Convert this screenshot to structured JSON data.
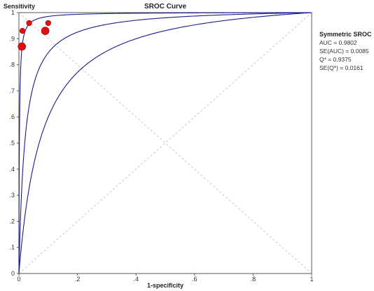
{
  "chart_data": {
    "type": "scatter",
    "title": "SROC Curve",
    "xlabel": "1-specificity",
    "ylabel": "Sensitivity",
    "xlim": [
      0,
      1
    ],
    "ylim": [
      0,
      1
    ],
    "x_ticks": [
      "0",
      ".2",
      ".4",
      ".6",
      ".8",
      "1"
    ],
    "y_ticks": [
      "0",
      ".1",
      ".2",
      ".3",
      ".4",
      ".5",
      ".6",
      ".7",
      ".8",
      ".9",
      "1"
    ],
    "grid": false,
    "legend": {
      "title": "Symmetric SROC",
      "position": "top-right",
      "lines": [
        "AUC = 0.9802",
        "SE(AUC) = 0.0085",
        "Q* = 0.9375",
        "SE(Q*) = 0.0161"
      ]
    },
    "points": [
      {
        "x": 0.01,
        "y": 0.87,
        "size": 2
      },
      {
        "x": 0.012,
        "y": 0.93,
        "size": 1
      },
      {
        "x": 0.035,
        "y": 0.96,
        "size": 1
      },
      {
        "x": 0.09,
        "y": 0.93,
        "size": 2
      },
      {
        "x": 0.1,
        "y": 0.96,
        "size": 1
      }
    ],
    "curves": [
      {
        "role": "sroc",
        "color": "#1a1a8c",
        "theta": 3.9
      },
      {
        "role": "upper-bound",
        "color": "#1a1a8c",
        "theta": 6.4
      },
      {
        "role": "lower-bound",
        "color": "#1a1a8c",
        "theta": 2.6
      }
    ],
    "colors": {
      "points": "#e01010",
      "curves": "#1a1a8c",
      "diagonal": "#c8c8c8"
    }
  }
}
